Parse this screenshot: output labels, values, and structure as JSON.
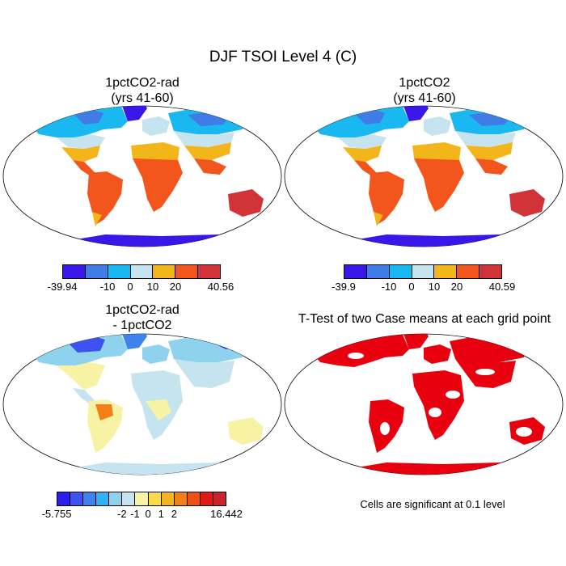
{
  "figure": {
    "title": "DJF TSOI Level 4 (C)"
  },
  "panels": [
    {
      "id": "p1",
      "title_line1": "1pctCO2-rad",
      "title_line2": "(yrs 41-60)",
      "colorbar": {
        "labels": [
          "-39.94",
          "-10",
          "0",
          "10",
          "20",
          "40.56"
        ],
        "colors": [
          "#3a17e8",
          "#3f7ce6",
          "#1ab8f0",
          "#c6e4ef",
          "#f2b61a",
          "#f2561c",
          "#d13438"
        ]
      }
    },
    {
      "id": "p2",
      "title_line1": "1pctCO2",
      "title_line2": "(yrs 41-60)",
      "colorbar": {
        "labels": [
          "-39.9",
          "-10",
          "0",
          "10",
          "20",
          "40.59"
        ],
        "colors": [
          "#3a17e8",
          "#3f7ce6",
          "#1ab8f0",
          "#c6e4ef",
          "#f2b61a",
          "#f2561c",
          "#d13438"
        ]
      }
    },
    {
      "id": "p3",
      "title_line1": "1pctCO2-rad",
      "title_line2": "- 1pctCO2",
      "colorbar": {
        "labels": [
          "-5.755",
          "-2",
          "-1",
          "0",
          "1",
          "2",
          "16.442"
        ],
        "colors": [
          "#2b1cf0",
          "#3d52f0",
          "#3d82ee",
          "#2fb1f2",
          "#8fd2ee",
          "#c6e4ef",
          "#f8f2a4",
          "#f7db4b",
          "#f5b221",
          "#f28016",
          "#ee4f14",
          "#e01a14",
          "#c8242a"
        ]
      }
    },
    {
      "id": "p4",
      "title_line1": "T-Test of two Case means at each grid point",
      "note": "Cells are significant at 0.1 level",
      "significant_color": "#e8000f"
    }
  ]
}
